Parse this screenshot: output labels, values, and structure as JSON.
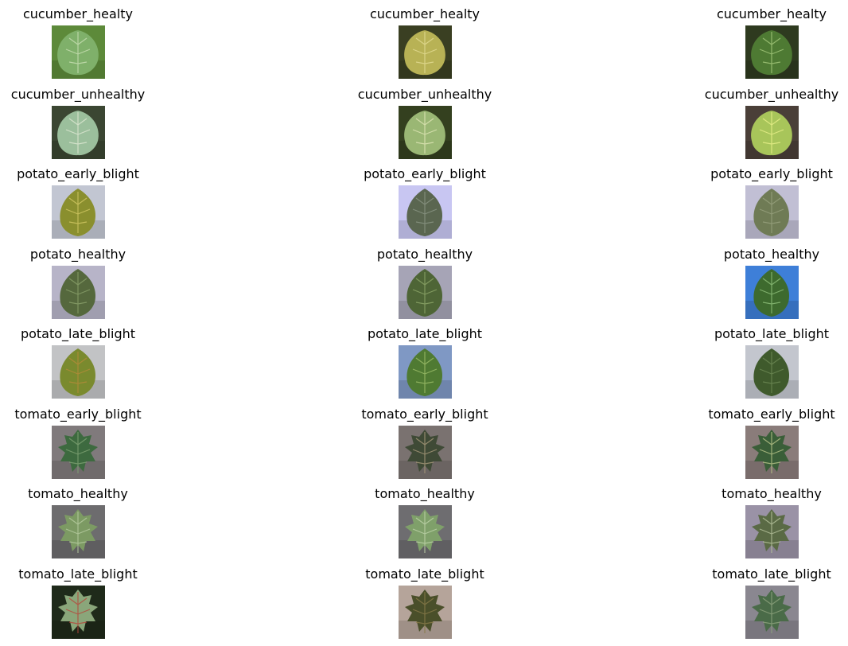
{
  "figure": {
    "rows": [
      {
        "label": "cucumber_healty",
        "images": [
          {
            "bg": "#5d8a3a",
            "leaf": "#7fb06a",
            "vein": "#c9e0b4",
            "shape": "broad"
          },
          {
            "bg": "#3a3f22",
            "leaf": "#b8b255",
            "vein": "#e3dc93",
            "shape": "broad"
          },
          {
            "bg": "#2e3a1f",
            "leaf": "#4e7a33",
            "vein": "#a5c97c",
            "shape": "broad"
          }
        ]
      },
      {
        "label": "cucumber_unhealthy",
        "images": [
          {
            "bg": "#3b4632",
            "leaf": "#9bbf9c",
            "vein": "#dfe9d3",
            "shape": "broad"
          },
          {
            "bg": "#34401f",
            "leaf": "#9ab774",
            "vein": "#e0e6b6",
            "shape": "broad"
          },
          {
            "bg": "#4a3f38",
            "leaf": "#a8c55a",
            "vein": "#e8f08a",
            "shape": "broad"
          }
        ]
      },
      {
        "label": "potato_early_blight",
        "images": [
          {
            "bg": "#c2c6d2",
            "leaf": "#8a8f2e",
            "vein": "#d2c864",
            "shape": "oval"
          },
          {
            "bg": "#c8c6f2",
            "leaf": "#5a6650",
            "vein": "#8b9684",
            "shape": "oval"
          },
          {
            "bg": "#c1bfd4",
            "leaf": "#6f7b55",
            "vein": "#98a37e",
            "shape": "oval"
          }
        ]
      },
      {
        "label": "potato_healthy",
        "images": [
          {
            "bg": "#b7b4c8",
            "leaf": "#55683d",
            "vein": "#8aa06a",
            "shape": "oval"
          },
          {
            "bg": "#a6a4b6",
            "leaf": "#4e6536",
            "vein": "#8ea86a",
            "shape": "oval"
          },
          {
            "bg": "#3e7fd8",
            "leaf": "#3d6a2e",
            "vein": "#8fc07a",
            "shape": "oval"
          }
        ]
      },
      {
        "label": "potato_late_blight",
        "images": [
          {
            "bg": "#c2c3c5",
            "leaf": "#7a8a2e",
            "vein": "#b58a3a",
            "shape": "oval"
          },
          {
            "bg": "#7f98c4",
            "leaf": "#4f7a32",
            "vein": "#9dbf6a",
            "shape": "oval"
          },
          {
            "bg": "#c3c6ce",
            "leaf": "#3f5a2c",
            "vein": "#6e8a55",
            "shape": "oval"
          }
        ]
      },
      {
        "label": "tomato_early_blight",
        "images": [
          {
            "bg": "#807a7c",
            "leaf": "#3d6a3f",
            "vein": "#7fa274",
            "shape": "lobed"
          },
          {
            "bg": "#7a7270",
            "leaf": "#3f4a36",
            "vein": "#a99a7c",
            "shape": "lobed"
          },
          {
            "bg": "#8a7c7a",
            "leaf": "#3a5e38",
            "vein": "#b9c48a",
            "shape": "lobed"
          }
        ]
      },
      {
        "label": "tomato_healthy",
        "images": [
          {
            "bg": "#6d6c6e",
            "leaf": "#7c9a63",
            "vein": "#b6cca0",
            "shape": "lobed"
          },
          {
            "bg": "#6e6d70",
            "leaf": "#7fa06a",
            "vein": "#bfd3aa",
            "shape": "lobed"
          },
          {
            "bg": "#9a92a6",
            "leaf": "#5a6a45",
            "vein": "#b7c39c",
            "shape": "lobed"
          }
        ]
      },
      {
        "label": "tomato_late_blight",
        "images": [
          {
            "bg": "#1f2a1a",
            "leaf": "#8aa67a",
            "vein": "#b5463b",
            "shape": "lobed"
          },
          {
            "bg": "#b5a49a",
            "leaf": "#4a4f2a",
            "vein": "#8a7a4a",
            "shape": "lobed"
          },
          {
            "bg": "#8a8790",
            "leaf": "#4a6b48",
            "vein": "#8ea47e",
            "shape": "lobed"
          }
        ]
      }
    ]
  }
}
